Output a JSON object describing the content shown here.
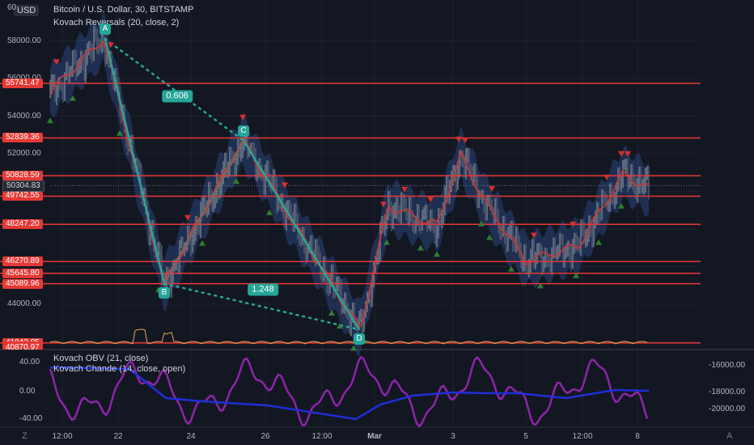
{
  "header": {
    "currency_button": "USD",
    "symbol_line": "Bitcoin / U.S. Dollar, 30, BITSTAMP",
    "indicator_line": "Kovach Reversals (20, close, 2)"
  },
  "y_axis_left": {
    "top_cut_label": "60",
    "ticks": [
      {
        "label": "58000.00",
        "value": 58000
      },
      {
        "label": "54000.00",
        "value": 54000
      },
      {
        "label": "52000.00",
        "value": 52000
      },
      {
        "label": "44000.00",
        "value": 44000
      }
    ],
    "partial_label": "56000.00"
  },
  "price_levels": [
    {
      "label": "55741.47",
      "value": 55741.47
    },
    {
      "label": "52839.36",
      "value": 52839.36
    },
    {
      "label": "50828.59",
      "value": 50828.59
    },
    {
      "label": "49742.55",
      "value": 49742.55
    },
    {
      "label": "48247.20",
      "value": 48247.2
    },
    {
      "label": "46270.89",
      "value": 46270.89
    },
    {
      "label": "45645.80",
      "value": 45645.8
    },
    {
      "label": "45089.96",
      "value": 45089.96
    },
    {
      "label": "41942.05",
      "value": 41942.05
    }
  ],
  "partial_bottom_level": "40870.97",
  "current_price": {
    "label": "50304.83",
    "value": 50304.83
  },
  "pattern": {
    "points": [
      {
        "label": "A",
        "value": 58100
      },
      {
        "label": "B",
        "value": 45100
      },
      {
        "label": "C",
        "value": 52700
      },
      {
        "label": "D",
        "value": 42650
      }
    ],
    "ratios": [
      "0.606",
      "1.248"
    ]
  },
  "lower_pane": {
    "legend_obv": "Kovach OBV (21, close)",
    "legend_chande": "Kovach Chande (14, close, open)",
    "left_ticks": [
      "40.00",
      "0.00",
      "-40.00"
    ],
    "right_ticks": [
      "-16000.00",
      "-18000.00",
      "-20000.00"
    ]
  },
  "x_axis": {
    "ticks": [
      "12:00",
      "22",
      "24",
      "26",
      "12:00",
      "Mar",
      "3",
      "5",
      "12:00",
      "8"
    ]
  },
  "corner_buttons": {
    "left": "Z",
    "right": "A"
  },
  "colors": {
    "background": "#131722",
    "level_line": "#e53935",
    "pattern": "#26a69a",
    "band": "#2f4d8f",
    "ma": "#c03b3b",
    "obv": "#1f2fd6",
    "chande": "#8e24aa"
  }
}
